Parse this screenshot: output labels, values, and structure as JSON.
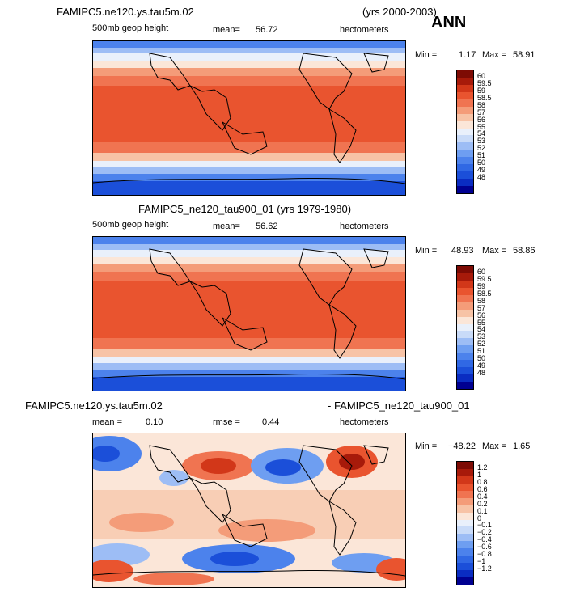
{
  "season": "ANN",
  "colors": {
    "abs_scale": [
      "#000091",
      "#0a2cc2",
      "#1b4fd9",
      "#3068e4",
      "#4c82ec",
      "#6e9ef1",
      "#9dbdf5",
      "#c9dbf8",
      "#e9f0fb",
      "#fbe6d8",
      "#f7c3a6",
      "#f49c79",
      "#f07451",
      "#e9542f",
      "#d23719",
      "#a71a0a",
      "#7d0b04"
    ],
    "diff_scale": [
      "#000091",
      "#0a2cc2",
      "#1b4fd9",
      "#3068e4",
      "#4c82ec",
      "#6e9ef1",
      "#9dbdf5",
      "#c9dbf8",
      "#e9f0fb",
      "#fbe6d8",
      "#f7c3a6",
      "#f49c79",
      "#f07451",
      "#e9542f",
      "#d23719",
      "#a71a0a",
      "#7d0b04"
    ]
  },
  "chart_data": [
    {
      "type": "heatmap",
      "title": "FAMIPC5.ne120.ys.tau5m.02",
      "years": "(yrs 2000-2003)",
      "variable": "500mb geop height",
      "mean_label": "mean=",
      "mean": "56.72",
      "units": "hectometers",
      "min_label": "Min =",
      "min": "1.17",
      "max_label": "Max =",
      "max": "58.91",
      "levels": [
        "60",
        "59.5",
        "59",
        "58.5",
        "58",
        "57",
        "56",
        "55",
        "54",
        "53",
        "52",
        "51",
        "50",
        "49",
        "48"
      ]
    },
    {
      "type": "heatmap",
      "title": "FAMIPC5_ne120_tau900_01 (yrs 1979-1980)",
      "variable": "500mb geop height",
      "mean_label": "mean=",
      "mean": "56.62",
      "units": "hectometers",
      "min_label": "Min =",
      "min": "48.93",
      "max_label": "Max =",
      "max": "58.86",
      "levels": [
        "60",
        "59.5",
        "59",
        "58.5",
        "58",
        "57",
        "56",
        "55",
        "54",
        "53",
        "52",
        "51",
        "50",
        "49",
        "48"
      ]
    },
    {
      "type": "heatmap",
      "title_left": "FAMIPC5.ne120.ys.tau5m.02",
      "title_right": "- FAMIPC5_ne120_tau900_01",
      "mean_label": "mean =",
      "mean": "0.10",
      "rmse_label": "rmse =",
      "rmse": "0.44",
      "units": "hectometers",
      "min_label": "Min =",
      "min": "−48.22",
      "max_label": "Max =",
      "max": "1.65",
      "levels": [
        "1.2",
        "1",
        "0.8",
        "0.6",
        "0.4",
        "0.2",
        "0.1",
        "0",
        "−0.1",
        "−0.2",
        "−0.4",
        "−0.6",
        "−0.8",
        "−1",
        "−1.2"
      ]
    }
  ]
}
